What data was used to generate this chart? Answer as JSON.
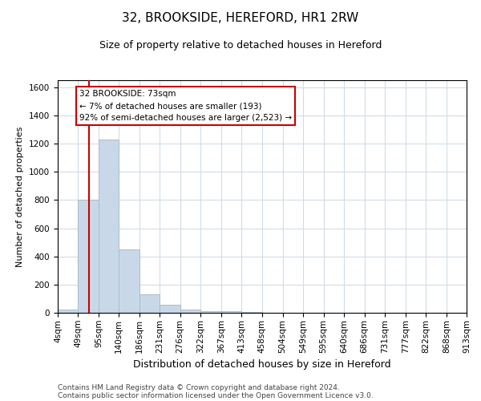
{
  "title": "32, BROOKSIDE, HEREFORD, HR1 2RW",
  "subtitle": "Size of property relative to detached houses in Hereford",
  "xlabel": "Distribution of detached houses by size in Hereford",
  "ylabel": "Number of detached properties",
  "footer1": "Contains HM Land Registry data © Crown copyright and database right 2024.",
  "footer2": "Contains public sector information licensed under the Open Government Licence v3.0.",
  "annotation_line1": "32 BROOKSIDE: 73sqm",
  "annotation_line2": "← 7% of detached houses are smaller (193)",
  "annotation_line3": "92% of semi-detached houses are larger (2,523) →",
  "property_size": 73,
  "bar_color": "#c8d8e8",
  "bar_edgecolor": "#aabccc",
  "redline_color": "#cc0000",
  "annotation_box_facecolor": "#ffffff",
  "annotation_box_edgecolor": "#cc0000",
  "background_color": "#ffffff",
  "grid_color": "#d0dce8",
  "bin_edges": [
    4,
    49,
    95,
    140,
    186,
    231,
    276,
    322,
    367,
    413,
    458,
    504,
    549,
    595,
    640,
    686,
    731,
    777,
    822,
    868,
    913
  ],
  "bar_heights": [
    20,
    800,
    1230,
    450,
    130,
    55,
    20,
    10,
    10,
    5,
    0,
    0,
    0,
    0,
    0,
    0,
    0,
    0,
    0,
    0
  ],
  "ylim": [
    0,
    1650
  ],
  "yticks": [
    0,
    200,
    400,
    600,
    800,
    1000,
    1200,
    1400,
    1600
  ],
  "title_fontsize": 11,
  "subtitle_fontsize": 9,
  "ylabel_fontsize": 8,
  "xlabel_fontsize": 9,
  "tick_fontsize": 7.5,
  "footer_fontsize": 6.5
}
